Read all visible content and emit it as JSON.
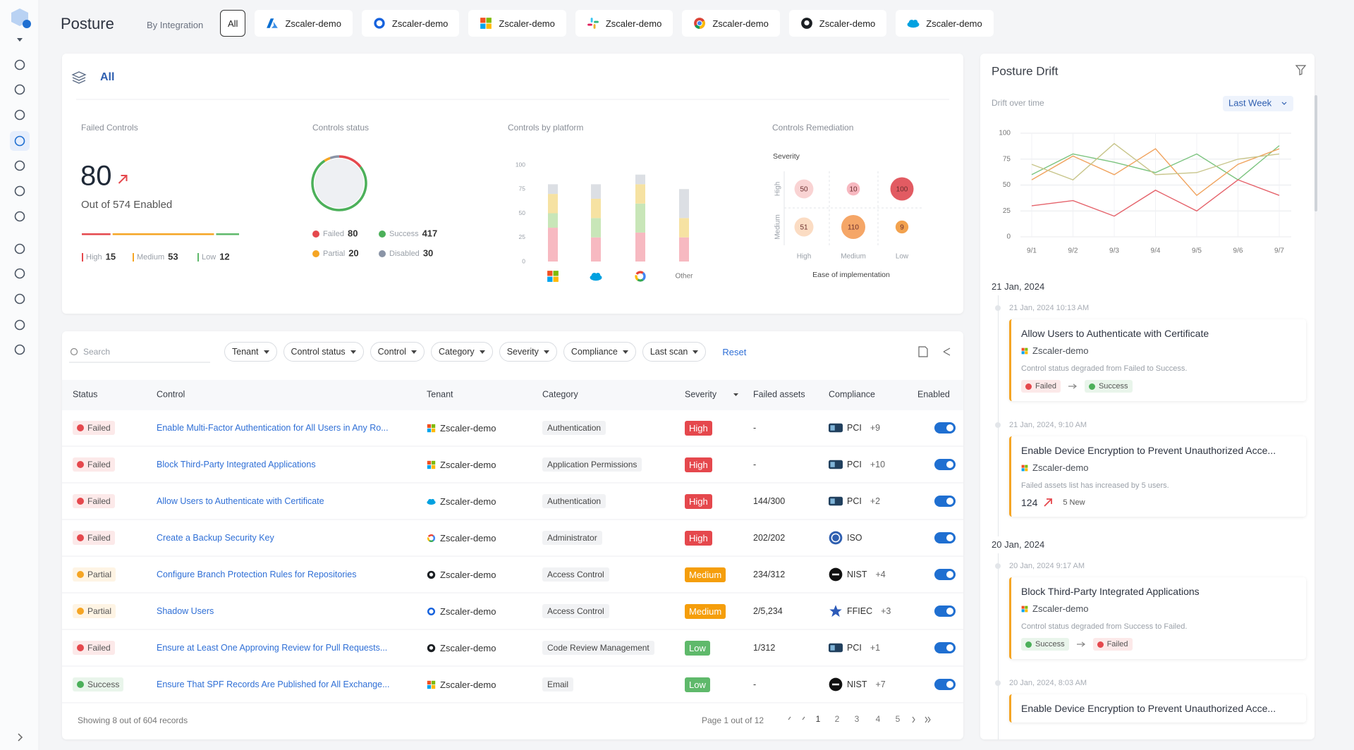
{
  "header": {
    "title": "Posture",
    "filter_label": "By Integration",
    "integrations": [
      "All",
      "Zscaler-demo",
      "Zscaler-demo",
      "Zscaler-demo",
      "Zscaler-demo",
      "Zscaler-demo",
      "Zscaler-demo",
      "Zscaler-demo"
    ]
  },
  "summary": {
    "title": "All",
    "failed_controls": {
      "label": "Failed Controls",
      "value": 80,
      "caption": "Out of 574 Enabled",
      "severities": [
        {
          "name": "High",
          "value": 15,
          "color": "#e5484d"
        },
        {
          "name": "Medium",
          "value": 53,
          "color": "#f5a524"
        },
        {
          "name": "Low",
          "value": 12,
          "color": "#5fb96b"
        }
      ]
    },
    "controls_status": {
      "label": "Controls status",
      "items": [
        {
          "name": "Failed",
          "value": 80,
          "color": "#e5484d"
        },
        {
          "name": "Success",
          "value": 417,
          "color": "#4cb05a"
        },
        {
          "name": "Partial",
          "value": 20,
          "color": "#f5a524"
        },
        {
          "name": "Disabled",
          "value": 30,
          "color": "#8a94a6"
        }
      ]
    },
    "controls_by_platform": {
      "type": "bar",
      "label": "Controls by platform",
      "categories": [
        null,
        null,
        null,
        "Other"
      ],
      "ylim": [
        0,
        100
      ],
      "yticks": [
        0,
        25,
        50,
        75,
        100
      ],
      "series": [
        {
          "color": "#f7b9c1",
          "values": [
            35,
            25,
            30,
            25
          ]
        },
        {
          "color": "#c8e6b8",
          "values": [
            15,
            20,
            30,
            0
          ]
        },
        {
          "color": "#f6e2a2",
          "values": [
            20,
            20,
            20,
            20
          ]
        },
        {
          "color": "#dcdfe4",
          "values": [
            10,
            15,
            10,
            30
          ]
        }
      ]
    },
    "controls_remediation": {
      "label": "Controls Remediation",
      "y_title": "Severity",
      "x_title": "Ease of implementation",
      "rows": [
        "High",
        "Medium"
      ],
      "columns": [
        "High",
        "Medium",
        "Low"
      ],
      "values": [
        [
          50,
          10,
          100
        ],
        [
          51,
          110,
          9
        ]
      ],
      "colors": [
        [
          "#f9d3d3",
          "#f7b8c0",
          "#e25b62"
        ],
        [
          "#fbdcc3",
          "#f5a667",
          "#f2a24e"
        ]
      ]
    }
  },
  "drift": {
    "title": "Posture Drift",
    "subtitle": "Drift over time",
    "period": "Last Week",
    "chart": {
      "type": "line",
      "categories": [
        "9/1",
        "9/2",
        "9/3",
        "9/4",
        "9/5",
        "9/6",
        "9/7"
      ],
      "ylim": [
        0,
        100
      ],
      "yticks": [
        0,
        25,
        50,
        75,
        100
      ],
      "series": [
        {
          "color": "#7cc47f",
          "values": [
            60,
            80,
            72,
            62,
            80,
            55,
            88
          ]
        },
        {
          "color": "#f0a35e",
          "values": [
            55,
            78,
            60,
            85,
            40,
            70,
            85
          ]
        },
        {
          "color": "#e5636b",
          "values": [
            30,
            35,
            20,
            45,
            25,
            55,
            40
          ]
        },
        {
          "color": "#c8c58a",
          "values": [
            70,
            55,
            90,
            60,
            62,
            75,
            80
          ]
        }
      ]
    },
    "days": [
      {
        "date": "21 Jan, 2024",
        "events": [
          {
            "time": "21 Jan, 2024 10:13 AM",
            "title": "Allow Users to Authenticate with Certificate",
            "tenant": "Zscaler-demo",
            "description": "Control status degraded from Failed to Success.",
            "change": [
              {
                "label": "Failed",
                "color": "#e5484d"
              },
              {
                "label": "Success",
                "color": "#4cb05a"
              }
            ]
          },
          {
            "time": "21 Jan, 2024, 9:10 AM",
            "title": "Enable Device Encryption to Prevent Unauthorized Acce...",
            "tenant": "Zscaler-demo",
            "description": "Failed assets list has increased by 5 users.",
            "count": 124,
            "count_note": "5 New"
          }
        ]
      },
      {
        "date": "20 Jan, 2024",
        "events": [
          {
            "time": "20 Jan, 2024 9:17 AM",
            "title": "Block Third-Party Integrated Applications",
            "tenant": "Zscaler-demo",
            "description": "Control status degraded from Success to Failed.",
            "change": [
              {
                "label": "Success",
                "color": "#4cb05a"
              },
              {
                "label": "Failed",
                "color": "#e5484d"
              }
            ]
          },
          {
            "time": "20 Jan, 2024, 8:03 AM",
            "title": "Enable Device Encryption to Prevent Unauthorized Acce..."
          }
        ]
      }
    ]
  },
  "table": {
    "search_placeholder": "Search",
    "filters": [
      "Tenant",
      "Control status",
      "Control",
      "Category",
      "Severity",
      "Compliance",
      "Last scan"
    ],
    "reset": "Reset",
    "columns": [
      "Status",
      "Control",
      "Tenant",
      "Category",
      "Severity",
      "Failed assets",
      "Compliance",
      "Enabled"
    ],
    "rows": [
      {
        "status": "Failed",
        "status_color": "#e5484d",
        "control": "Enable Multi-Factor Authentication for All Users in Any Ro...",
        "tenant": "Zscaler-demo",
        "category": "Authentication",
        "severity": "High",
        "severity_color": "#e5484d",
        "failed_assets": "-",
        "compliance": "PCI",
        "compliance_more": "+9",
        "enabled": true
      },
      {
        "status": "Failed",
        "status_color": "#e5484d",
        "control": "Block Third-Party Integrated Applications",
        "tenant": "Zscaler-demo",
        "category": "Application Permissions",
        "severity": "High",
        "severity_color": "#e5484d",
        "failed_assets": "-",
        "compliance": "PCI",
        "compliance_more": "+10",
        "enabled": true
      },
      {
        "status": "Failed",
        "status_color": "#e5484d",
        "control": "Allow Users to Authenticate with Certificate",
        "tenant": "Zscaler-demo",
        "category": "Authentication",
        "severity": "High",
        "severity_color": "#e5484d",
        "failed_assets": "144/300",
        "compliance": "PCI",
        "compliance_more": "+2",
        "enabled": true
      },
      {
        "status": "Failed",
        "status_color": "#e5484d",
        "control": "Create a Backup Security Key",
        "tenant": "Zscaler-demo",
        "category": "Administrator",
        "severity": "High",
        "severity_color": "#e5484d",
        "failed_assets": "202/202",
        "compliance": "ISO",
        "enabled": true
      },
      {
        "status": "Partial",
        "status_color": "#f5a524",
        "control": "Configure Branch Protection Rules for Repositories",
        "tenant": "Zscaler-demo",
        "category": "Access Control",
        "severity": "Medium",
        "severity_color": "#f59e0b",
        "failed_assets": "234/312",
        "compliance": "NIST",
        "compliance_more": "+4",
        "enabled": true
      },
      {
        "status": "Partial",
        "status_color": "#f5a524",
        "control": "Shadow Users",
        "tenant": "Zscaler-demo",
        "category": "Access Control",
        "severity": "Medium",
        "severity_color": "#f59e0b",
        "failed_assets": "2/5,234",
        "compliance": "FFIEC",
        "compliance_more": "+3",
        "enabled": true
      },
      {
        "status": "Failed",
        "status_color": "#e5484d",
        "control": "Ensure at Least One Approving Review for Pull Requests...",
        "tenant": "Zscaler-demo",
        "category": "Code Review Management",
        "severity": "Low",
        "severity_color": "#5fb96b",
        "failed_assets": "1/312",
        "compliance": "PCI",
        "compliance_more": "+1",
        "enabled": true
      },
      {
        "status": "Success",
        "status_color": "#4cb05a",
        "control": "Ensure That SPF Records Are Published for All Exchange...",
        "tenant": "Zscaler-demo",
        "category": "Email",
        "severity": "Low",
        "severity_color": "#5fb96b",
        "failed_assets": "-",
        "compliance": "NIST",
        "compliance_more": "+7",
        "enabled": true
      }
    ],
    "footer": {
      "summary": "Showing 8 out of 604 records",
      "page_label": "Page 1 out of 12",
      "pages": [
        1,
        2,
        3,
        4,
        5
      ]
    }
  }
}
